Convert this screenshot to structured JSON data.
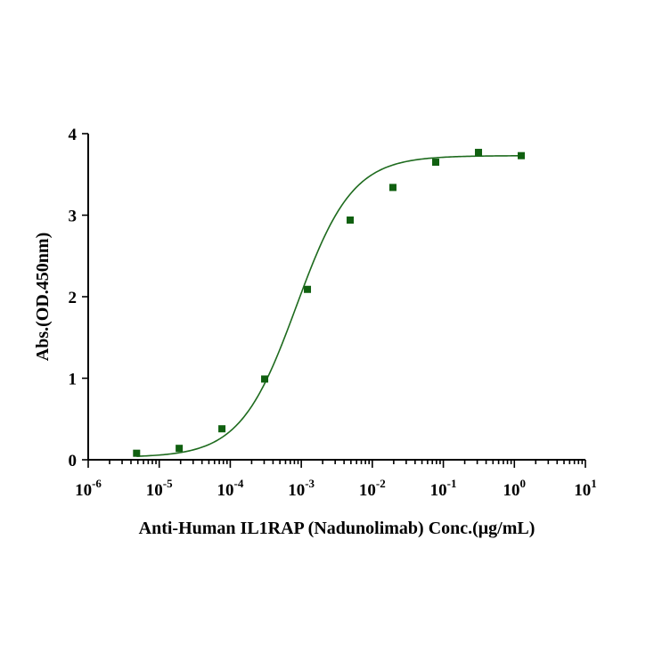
{
  "chart_data": {
    "type": "scatter",
    "xlabel": "Anti-Human IL1RAP (Nadunolimab) Conc.(μg/mL)",
    "ylabel": "Abs.(OD.450nm)",
    "xscale": "log",
    "xlim": [
      1e-06,
      10
    ],
    "ylim": [
      0,
      4
    ],
    "x_ticks": [
      {
        "base": "10",
        "exp": "-6",
        "value": 1e-06
      },
      {
        "base": "10",
        "exp": "-5",
        "value": 1e-05
      },
      {
        "base": "10",
        "exp": "-4",
        "value": 0.0001
      },
      {
        "base": "10",
        "exp": "-3",
        "value": 0.001
      },
      {
        "base": "10",
        "exp": "-2",
        "value": 0.01
      },
      {
        "base": "10",
        "exp": "-1",
        "value": 0.1
      },
      {
        "base": "10",
        "exp": "0",
        "value": 1
      },
      {
        "base": "10",
        "exp": "1",
        "value": 10
      }
    ],
    "y_ticks": [
      "0",
      "1",
      "2",
      "3",
      "4"
    ],
    "grid": false,
    "series": [
      {
        "marker": "square",
        "color": "#106010",
        "x": [
          4.8e-06,
          1.91e-05,
          7.63e-05,
          0.000305,
          0.00122,
          0.00488,
          0.0195,
          0.0781,
          0.3125,
          1.25
        ],
        "y": [
          0.08,
          0.14,
          0.38,
          0.99,
          2.09,
          2.94,
          3.34,
          3.65,
          3.77,
          3.73
        ]
      }
    ],
    "fit_curve": {
      "model": "4PL",
      "color": "#1e6b1e",
      "bottom": 0.03,
      "top": 3.73,
      "ec50": 0.00085,
      "hill": 1.1
    }
  }
}
